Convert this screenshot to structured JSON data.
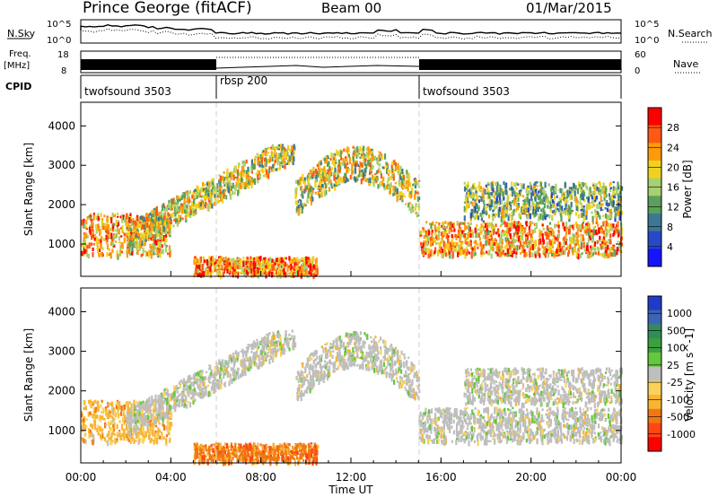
{
  "header": {
    "station": "Prince George (fitACF)",
    "beam": "Beam 00",
    "date": "01/Mar/2015"
  },
  "colors": {
    "panel_border": "#000000",
    "noise_trace": "#000000",
    "boundary_line": "#cfcfcf"
  },
  "noise_panel": {
    "left_label": "N.Sky",
    "right_label": "N.Search",
    "left_ticks": [
      "10^5",
      "10^0"
    ],
    "right_ticks": [
      "10^5",
      "10^0"
    ]
  },
  "freq_panel": {
    "left_label_1": "Freq.",
    "left_label_2": "[MHz]",
    "right_label": "Nave",
    "left_ticks": [
      "18",
      "8"
    ],
    "right_ticks": [
      "60",
      "0"
    ]
  },
  "cpid_panel": {
    "label": "CPID",
    "segments": [
      {
        "name": "twofsound 3503",
        "start_hour": 0,
        "end_hour": 6
      },
      {
        "name": "rbsp 200",
        "start_hour": 6,
        "end_hour": 15
      },
      {
        "name": "twofsound 3503",
        "start_hour": 15,
        "end_hour": 24
      }
    ]
  },
  "chart_data": [
    {
      "type": "heatmap",
      "title": "Power",
      "ylabel": "Slant Range [km]",
      "xlabel": "Time UT",
      "ylim": [
        180,
        4600
      ],
      "xlim": [
        0,
        24
      ],
      "y_ticks": [
        "1000",
        "2000",
        "3000",
        "4000"
      ],
      "x_ticks": [
        "00:00",
        "04:00",
        "08:00",
        "12:00",
        "16:00",
        "20:00",
        "00:00"
      ],
      "colorbar": {
        "label": "Power [dB]",
        "tick_labels": [
          "28",
          "24",
          "20",
          "16",
          "12",
          "8",
          "4"
        ],
        "colors": [
          "#ff0000",
          "#ff5a14",
          "#ff9b0a",
          "#f0d21e",
          "#a8d070",
          "#5aa05a",
          "#3c7896",
          "#2848c8",
          "#1414ff"
        ]
      },
      "echo_regions": [
        {
          "region": "morning near-range band",
          "hours": [
            0,
            4
          ],
          "range_km": [
            750,
            1800
          ],
          "typical_power_db": 22
        },
        {
          "region": "rising band",
          "hours": [
            2,
            9.5
          ],
          "range_km": [
            1200,
            3500
          ],
          "typical_power_db": 18
        },
        {
          "region": "mid-day arch",
          "hours": [
            9.5,
            15
          ],
          "range_km": [
            2000,
            3500
          ],
          "typical_power_db": 18
        },
        {
          "region": "low-range daytime",
          "hours": [
            5,
            10.5
          ],
          "range_km": [
            250,
            700
          ],
          "typical_power_db": 24
        },
        {
          "region": "evening band",
          "hours": [
            15,
            24
          ],
          "range_km": [
            750,
            1600
          ],
          "typical_power_db": 22
        },
        {
          "region": "evening upper band",
          "hours": [
            17,
            24
          ],
          "range_km": [
            1700,
            2600
          ],
          "typical_power_db": 14
        }
      ]
    },
    {
      "type": "heatmap",
      "title": "Velocity",
      "ylabel": "Slant Range [km]",
      "xlabel": "Time UT",
      "ylim": [
        180,
        4600
      ],
      "xlim": [
        0,
        24
      ],
      "y_ticks": [
        "1000",
        "2000",
        "3000",
        "4000"
      ],
      "x_ticks": [
        "00:00",
        "04:00",
        "08:00",
        "12:00",
        "16:00",
        "20:00",
        "00:00"
      ],
      "colorbar": {
        "label": "Velocity [m s^-1]",
        "tick_labels": [
          "1000",
          "500",
          "100",
          "25",
          "-25",
          "-100",
          "-500",
          "-1000"
        ],
        "colors": [
          "#1e3cc8",
          "#3c64b4",
          "#328c5a",
          "#3ca03c",
          "#64c83c",
          "#bebebe",
          "#fad25a",
          "#fab432",
          "#f07814",
          "#ff4614",
          "#ff0000"
        ]
      },
      "echo_regions": [
        {
          "region": "morning near-range band",
          "hours": [
            0,
            4
          ],
          "range_km": [
            750,
            1800
          ],
          "typical_velocity": "-100"
        },
        {
          "region": "rising band",
          "hours": [
            2,
            9.5
          ],
          "range_km": [
            1200,
            3500
          ],
          "typical_velocity": "25"
        },
        {
          "region": "mid-day arch",
          "hours": [
            9.5,
            15
          ],
          "range_km": [
            2000,
            3500
          ],
          "typical_velocity": "25"
        },
        {
          "region": "low-range daytime",
          "hours": [
            5,
            10.5
          ],
          "range_km": [
            250,
            700
          ],
          "typical_velocity": "-500"
        },
        {
          "region": "evening band",
          "hours": [
            15,
            24
          ],
          "range_km": [
            750,
            1600
          ],
          "typical_velocity": "25"
        },
        {
          "region": "evening upper band",
          "hours": [
            17,
            24
          ],
          "range_km": [
            1700,
            2600
          ],
          "typical_velocity": "25"
        }
      ]
    }
  ]
}
